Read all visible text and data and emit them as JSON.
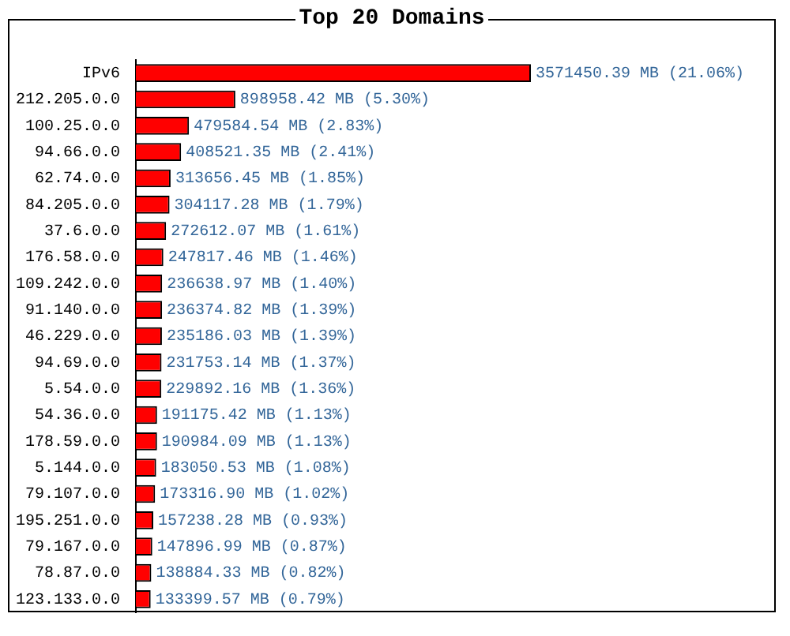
{
  "chart_data": {
    "type": "bar",
    "title": "Top 20 Domains",
    "orientation": "horizontal",
    "tick_labels": "y",
    "legend": false,
    "categories": [
      "IPv6",
      "212.205.0.0",
      "100.25.0.0",
      "94.66.0.0",
      "62.74.0.0",
      "84.205.0.0",
      "37.6.0.0",
      "176.58.0.0",
      "109.242.0.0",
      "91.140.0.0",
      "46.229.0.0",
      "94.69.0.0",
      "5.54.0.0",
      "54.36.0.0",
      "178.59.0.0",
      "5.144.0.0",
      "79.107.0.0",
      "195.251.0.0",
      "79.167.0.0",
      "78.87.0.0",
      "123.133.0.0"
    ],
    "values": [
      3571450.39,
      898958.42,
      479584.54,
      408521.35,
      313656.45,
      304117.28,
      272612.07,
      247817.46,
      236638.97,
      236374.82,
      235186.03,
      231753.14,
      229892.16,
      191175.42,
      190984.09,
      183050.53,
      173316.9,
      157238.28,
      147896.99,
      138884.33,
      133399.57
    ],
    "value_labels": [
      "3571450.39 MB (21.06%)",
      "898958.42 MB (5.30%)",
      "479584.54 MB (2.83%)",
      "408521.35 MB (2.41%)",
      "313656.45 MB (1.85%)",
      "304117.28 MB (1.79%)",
      "272612.07 MB (1.61%)",
      "247817.46 MB (1.46%)",
      "236638.97 MB (1.40%)",
      "236374.82 MB (1.39%)",
      "235186.03 MB (1.39%)",
      "231753.14 MB (1.37%)",
      "229892.16 MB (1.36%)",
      "191175.42 MB (1.13%)",
      "190984.09 MB (1.13%)",
      "183050.53 MB (1.08%)",
      "173316.90 MB (1.02%)",
      "157238.28 MB (0.93%)",
      "147896.99 MB (0.87%)",
      "138884.33 MB (0.82%)",
      "133399.57 MB (0.79%)"
    ],
    "color": "#ff0000"
  }
}
